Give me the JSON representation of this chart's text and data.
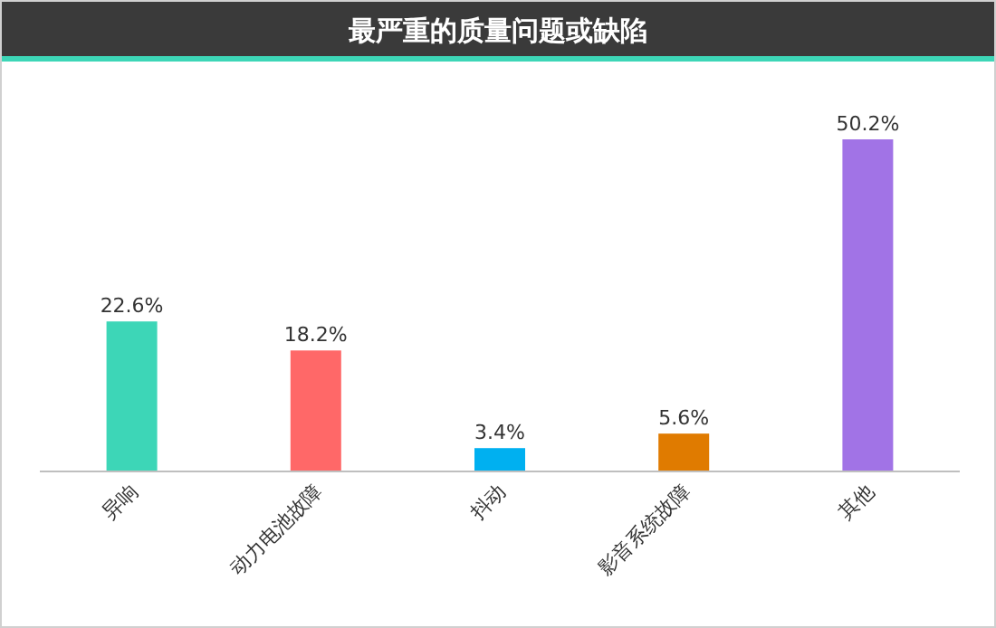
{
  "chart_data": {
    "type": "bar",
    "title": "最严重的质量问题或缺陷",
    "categories": [
      "异响",
      "动力电池故障",
      "抖动",
      "影音系统故障",
      "其他"
    ],
    "values": [
      22.6,
      18.2,
      3.4,
      5.6,
      50.2
    ],
    "colors": [
      "#3dd6b7",
      "#ff6868",
      "#00b0f0",
      "#e07b00",
      "#a173e6"
    ],
    "value_labels": [
      "22.6%",
      "18.2%",
      "3.4%",
      "5.6%",
      "50.2%"
    ]
  }
}
